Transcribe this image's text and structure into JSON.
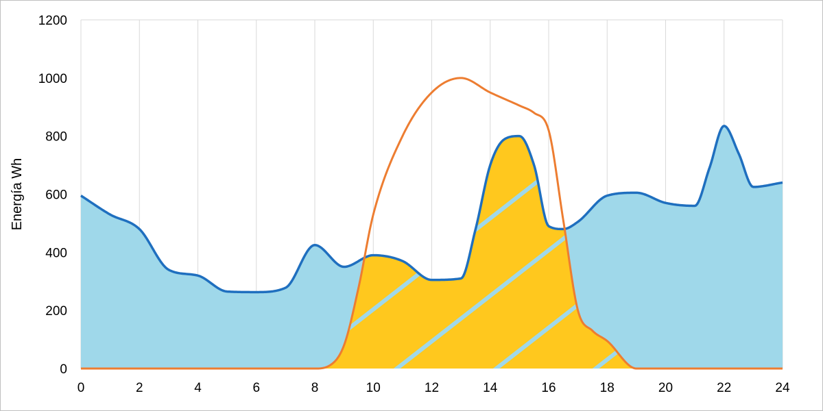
{
  "chart_data": {
    "type": "area",
    "xlabel": "",
    "ylabel": "Energía Wh",
    "xlim": [
      0,
      24
    ],
    "ylim": [
      0,
      1200
    ],
    "x_ticks": [
      0,
      2,
      4,
      6,
      8,
      10,
      12,
      14,
      16,
      18,
      20,
      22,
      24
    ],
    "y_ticks": [
      0,
      200,
      400,
      600,
      800,
      1000,
      1200
    ],
    "grid": "vertical",
    "legend": "none",
    "colors": {
      "consumption_line": "#1f6fbf",
      "consumption_fill": "#9fd8ea",
      "production_line": "#ed7d31",
      "self_consumption_fill": "#ffc81e",
      "hatch": "#9fd8ea",
      "grid": "#d9d9d9"
    },
    "series": [
      {
        "x": [
          0,
          1,
          2,
          3,
          4,
          5,
          6,
          7,
          8,
          9,
          10,
          11,
          12,
          13,
          13.5,
          14,
          14.5,
          15,
          15.5,
          16,
          16.5,
          17,
          18,
          19,
          20,
          21,
          21.5,
          22,
          22.5,
          23,
          24
        ],
        "y": [
          595,
          530,
          480,
          340,
          320,
          265,
          263,
          278,
          425,
          350,
          390,
          370,
          305,
          310,
          480,
          700,
          790,
          800,
          700,
          490,
          480,
          505,
          595,
          605,
          570,
          560,
          690,
          835,
          740,
          625,
          640
        ]
      },
      {
        "x": [
          0,
          7.5,
          8,
          8.5,
          9,
          9.5,
          10,
          11,
          12,
          13,
          14,
          15,
          15.5,
          16,
          16.5,
          17,
          17.5,
          18,
          19,
          20,
          24
        ],
        "y": [
          0,
          0,
          0,
          10,
          80,
          280,
          530,
          800,
          950,
          1000,
          950,
          905,
          880,
          820,
          510,
          200,
          130,
          95,
          0,
          0,
          0
        ]
      }
    ]
  }
}
